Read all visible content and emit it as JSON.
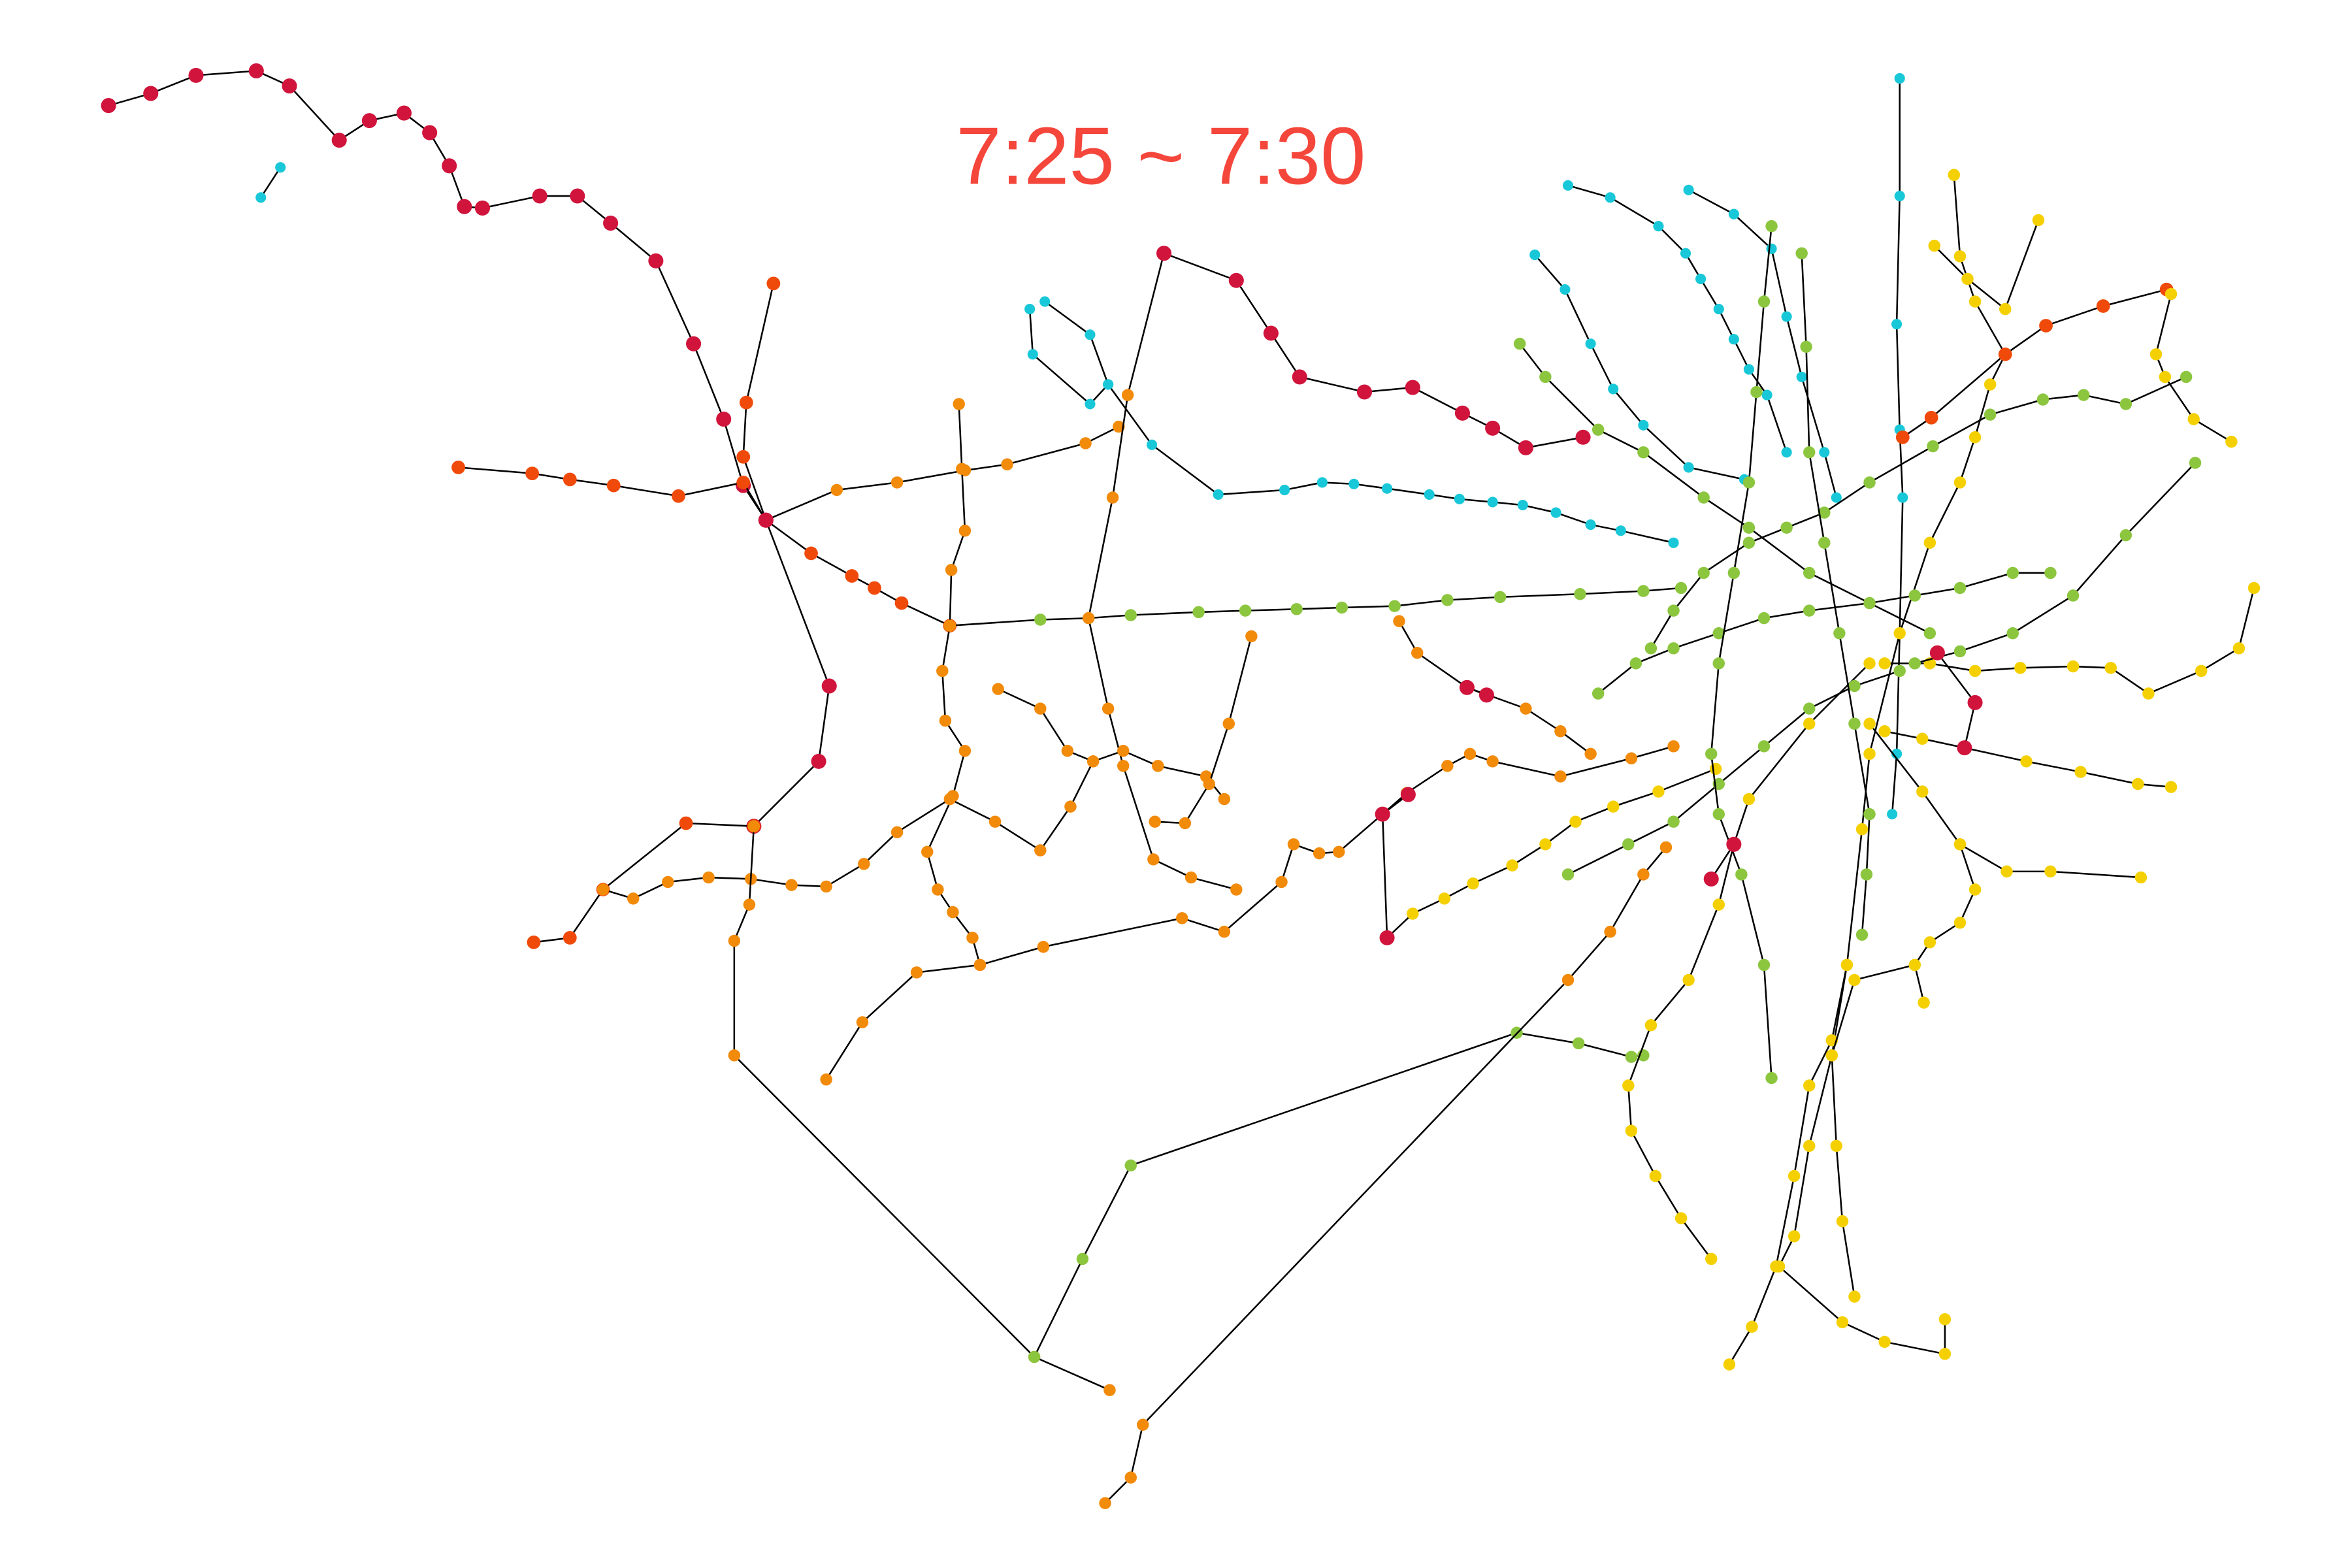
{
  "title": "7:25 ~ 7:30"
}
